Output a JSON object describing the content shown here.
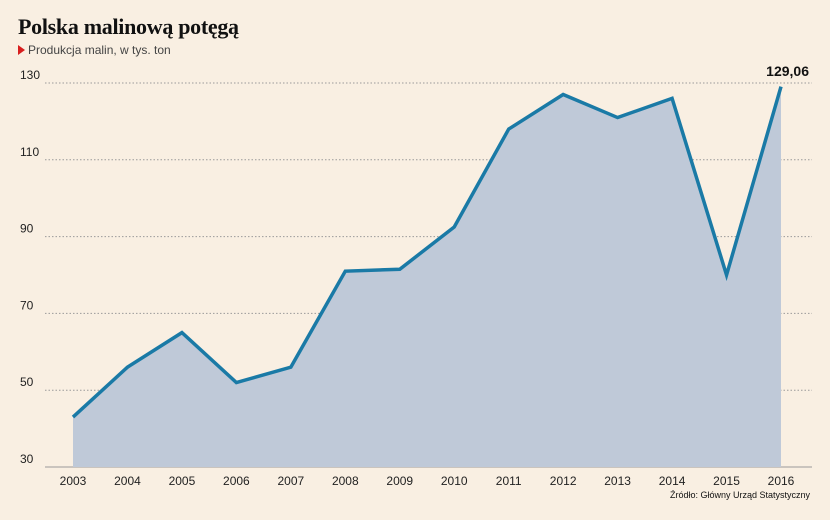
{
  "header": {
    "title": "Polska malinową potęgą",
    "subtitle": "Produkcja malin, w tys. ton"
  },
  "footer": {
    "source": "Źródło: Główny Urząd Statystyczny"
  },
  "colors": {
    "background": "#f9efe2",
    "line": "#1a7aa6",
    "area": "#bfc9d8",
    "marker": "#d81e1e",
    "grid": "#9a9a9a"
  },
  "chart_data": {
    "type": "area",
    "x": [
      "2003",
      "2004",
      "2005",
      "2006",
      "2007",
      "2008",
      "2009",
      "2010",
      "2011",
      "2012",
      "2013",
      "2014",
      "2015",
      "2016"
    ],
    "values": [
      43,
      56,
      65,
      52,
      56,
      81,
      81.5,
      92.5,
      118,
      127,
      121,
      126,
      80,
      129.06
    ],
    "ylim": [
      30,
      130
    ],
    "yticks": [
      "30",
      "50",
      "70",
      "90",
      "110",
      "130"
    ],
    "grid": "horizontal dotted",
    "annotation": "129,06"
  }
}
